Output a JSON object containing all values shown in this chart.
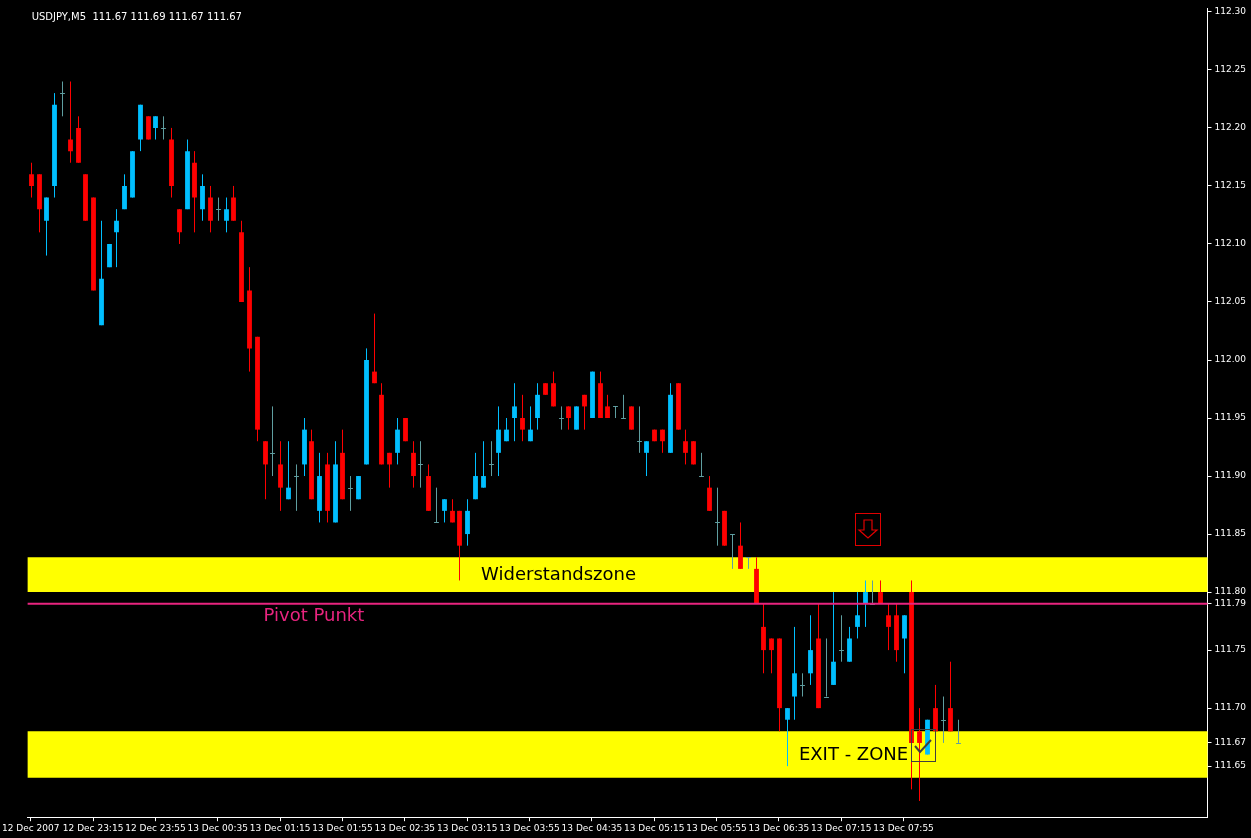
{
  "chart_data": {
    "type": "candlestick",
    "title": "USDJPY,M5  111.67 111.69 111.67 111.67",
    "x": [
      "2007-12-12T22:35",
      "2007-12-12T22:40",
      "2007-12-12T22:45",
      "2007-12-12T22:50",
      "2007-12-12T22:55",
      "2007-12-12T23:00",
      "2007-12-12T23:05",
      "2007-12-12T23:10",
      "2007-12-12T23:15",
      "2007-12-12T23:20",
      "2007-12-12T23:25",
      "2007-12-12T23:30",
      "2007-12-12T23:35",
      "2007-12-12T23:40",
      "2007-12-12T23:45",
      "2007-12-12T23:50",
      "2007-12-12T23:55",
      "2007-12-13T00:00",
      "2007-12-13T00:05",
      "2007-12-13T00:10",
      "2007-12-13T00:15",
      "2007-12-13T00:20",
      "2007-12-13T00:25",
      "2007-12-13T00:30",
      "2007-12-13T00:35",
      "2007-12-13T00:40",
      "2007-12-13T00:45",
      "2007-12-13T00:50",
      "2007-12-13T00:55",
      "2007-12-13T01:00",
      "2007-12-13T01:05",
      "2007-12-13T01:10",
      "2007-12-13T01:15",
      "2007-12-13T01:20",
      "2007-12-13T01:25",
      "2007-12-13T01:30",
      "2007-12-13T01:35",
      "2007-12-13T01:40",
      "2007-12-13T01:45",
      "2007-12-13T01:50",
      "2007-12-13T01:55",
      "2007-12-13T02:00",
      "2007-12-13T02:05",
      "2007-12-13T02:10",
      "2007-12-13T02:15",
      "2007-12-13T02:20",
      "2007-12-13T02:25",
      "2007-12-13T02:30",
      "2007-12-13T02:35",
      "2007-12-13T02:40",
      "2007-12-13T02:45",
      "2007-12-13T02:50",
      "2007-12-13T02:55",
      "2007-12-13T03:00",
      "2007-12-13T03:05",
      "2007-12-13T03:10",
      "2007-12-13T03:15",
      "2007-12-13T03:20",
      "2007-12-13T03:25",
      "2007-12-13T03:30",
      "2007-12-13T03:35",
      "2007-12-13T03:40",
      "2007-12-13T03:45",
      "2007-12-13T03:50",
      "2007-12-13T03:55",
      "2007-12-13T04:00",
      "2007-12-13T04:05",
      "2007-12-13T04:10",
      "2007-12-13T04:15",
      "2007-12-13T04:20",
      "2007-12-13T04:25",
      "2007-12-13T04:30",
      "2007-12-13T04:35",
      "2007-12-13T04:40",
      "2007-12-13T04:45",
      "2007-12-13T04:50",
      "2007-12-13T04:55",
      "2007-12-13T05:00",
      "2007-12-13T05:05",
      "2007-12-13T05:10",
      "2007-12-13T05:15",
      "2007-12-13T05:20",
      "2007-12-13T05:25",
      "2007-12-13T05:30",
      "2007-12-13T05:35",
      "2007-12-13T05:40",
      "2007-12-13T05:45",
      "2007-12-13T05:50",
      "2007-12-13T05:55",
      "2007-12-13T06:00",
      "2007-12-13T06:05",
      "2007-12-13T06:10",
      "2007-12-13T06:15",
      "2007-12-13T06:20",
      "2007-12-13T06:25",
      "2007-12-13T06:30",
      "2007-12-13T06:35",
      "2007-12-13T06:40",
      "2007-12-13T06:45",
      "2007-12-13T06:50",
      "2007-12-13T06:55",
      "2007-12-13T07:00",
      "2007-12-13T07:05",
      "2007-12-13T07:10",
      "2007-12-13T07:15",
      "2007-12-13T07:20",
      "2007-12-13T07:25",
      "2007-12-13T07:30",
      "2007-12-13T07:35",
      "2007-12-13T07:40",
      "2007-12-13T07:45",
      "2007-12-13T07:50",
      "2007-12-13T07:55",
      "2007-12-13T08:00",
      "2007-12-13T08:05",
      "2007-12-13T08:10",
      "2007-12-13T08:15",
      "2007-12-13T08:20",
      "2007-12-13T08:25",
      "2007-12-13T08:30"
    ],
    "ohlc": [
      [
        112.16,
        112.17,
        112.14,
        112.15
      ],
      [
        112.16,
        112.16,
        112.11,
        112.13
      ],
      [
        112.12,
        112.14,
        112.09,
        112.14
      ],
      [
        112.15,
        112.23,
        112.14,
        112.22
      ],
      [
        112.23,
        112.24,
        112.21,
        112.23
      ],
      [
        112.19,
        112.24,
        112.17,
        112.18
      ],
      [
        112.2,
        112.21,
        112.17,
        112.17
      ],
      [
        112.16,
        112.16,
        112.12,
        112.12
      ],
      [
        112.14,
        112.14,
        112.06,
        112.06
      ],
      [
        112.03,
        112.12,
        112.03,
        112.07
      ],
      [
        112.08,
        112.1,
        112.08,
        112.1
      ],
      [
        112.11,
        112.13,
        112.08,
        112.12
      ],
      [
        112.13,
        112.16,
        112.13,
        112.15
      ],
      [
        112.14,
        112.18,
        112.14,
        112.18
      ],
      [
        112.19,
        112.22,
        112.18,
        112.22
      ],
      [
        112.21,
        112.21,
        112.19,
        112.19
      ],
      [
        112.2,
        112.21,
        112.19,
        112.21
      ],
      [
        112.2,
        112.21,
        112.19,
        112.2
      ],
      [
        112.19,
        112.2,
        112.14,
        112.15
      ],
      [
        112.13,
        112.13,
        112.1,
        112.11
      ],
      [
        112.13,
        112.19,
        112.13,
        112.18
      ],
      [
        112.17,
        112.18,
        112.11,
        112.14
      ],
      [
        112.13,
        112.16,
        112.12,
        112.15
      ],
      [
        112.14,
        112.15,
        112.11,
        112.12
      ],
      [
        112.13,
        112.14,
        112.12,
        112.13
      ],
      [
        112.12,
        112.14,
        112.11,
        112.13
      ],
      [
        112.14,
        112.15,
        112.12,
        112.12
      ],
      [
        112.11,
        112.12,
        112.05,
        112.05
      ],
      [
        112.06,
        112.08,
        111.99,
        112.01
      ],
      [
        112.02,
        112.02,
        111.93,
        111.94
      ],
      [
        111.93,
        111.93,
        111.88,
        111.91
      ],
      [
        111.92,
        111.96,
        111.9,
        111.92
      ],
      [
        111.91,
        111.93,
        111.87,
        111.89
      ],
      [
        111.88,
        111.93,
        111.88,
        111.89
      ],
      [
        111.9,
        111.91,
        111.87,
        111.9
      ],
      [
        111.91,
        111.95,
        111.9,
        111.94
      ],
      [
        111.93,
        111.94,
        111.88,
        111.88
      ],
      [
        111.87,
        111.92,
        111.86,
        111.9
      ],
      [
        111.91,
        111.92,
        111.86,
        111.87
      ],
      [
        111.86,
        111.93,
        111.86,
        111.91
      ],
      [
        111.92,
        111.94,
        111.88,
        111.88
      ],
      [
        111.89,
        111.9,
        111.87,
        111.89
      ],
      [
        111.88,
        111.9,
        111.88,
        111.9
      ],
      [
        111.91,
        112.01,
        111.91,
        112.0
      ],
      [
        111.99,
        112.04,
        111.98,
        111.98
      ],
      [
        111.97,
        111.98,
        111.91,
        111.91
      ],
      [
        111.92,
        111.92,
        111.89,
        111.91
      ],
      [
        111.92,
        111.95,
        111.91,
        111.94
      ],
      [
        111.95,
        111.95,
        111.93,
        111.93
      ],
      [
        111.92,
        111.93,
        111.89,
        111.9
      ],
      [
        111.91,
        111.93,
        111.89,
        111.91
      ],
      [
        111.9,
        111.91,
        111.87,
        111.87
      ],
      [
        111.86,
        111.89,
        111.86,
        111.86
      ],
      [
        111.87,
        111.88,
        111.86,
        111.88
      ],
      [
        111.87,
        111.88,
        111.86,
        111.86
      ],
      [
        111.87,
        111.87,
        111.81,
        111.84
      ],
      [
        111.85,
        111.88,
        111.84,
        111.87
      ],
      [
        111.88,
        111.92,
        111.88,
        111.9
      ],
      [
        111.89,
        111.93,
        111.89,
        111.9
      ],
      [
        111.91,
        111.93,
        111.9,
        111.91
      ],
      [
        111.92,
        111.96,
        111.9,
        111.94
      ],
      [
        111.93,
        111.95,
        111.93,
        111.94
      ],
      [
        111.95,
        111.98,
        111.93,
        111.96
      ],
      [
        111.95,
        111.97,
        111.93,
        111.94
      ],
      [
        111.93,
        111.96,
        111.93,
        111.94
      ],
      [
        111.95,
        111.98,
        111.94,
        111.97
      ],
      [
        111.98,
        111.98,
        111.97,
        111.97
      ],
      [
        111.98,
        111.99,
        111.96,
        111.96
      ],
      [
        111.95,
        111.96,
        111.94,
        111.95
      ],
      [
        111.96,
        111.96,
        111.94,
        111.95
      ],
      [
        111.94,
        111.96,
        111.94,
        111.96
      ],
      [
        111.97,
        111.97,
        111.94,
        111.96
      ],
      [
        111.95,
        111.99,
        111.95,
        111.99
      ],
      [
        111.98,
        111.99,
        111.95,
        111.95
      ],
      [
        111.96,
        111.97,
        111.95,
        111.95
      ],
      [
        111.96,
        111.96,
        111.95,
        111.96
      ],
      [
        111.95,
        111.97,
        111.95,
        111.95
      ],
      [
        111.96,
        111.96,
        111.94,
        111.94
      ],
      [
        111.93,
        111.96,
        111.92,
        111.93
      ],
      [
        111.92,
        111.93,
        111.9,
        111.93
      ],
      [
        111.94,
        111.94,
        111.93,
        111.93
      ],
      [
        111.94,
        111.94,
        111.92,
        111.93
      ],
      [
        111.92,
        111.98,
        111.92,
        111.97
      ],
      [
        111.98,
        111.98,
        111.94,
        111.94
      ],
      [
        111.93,
        111.94,
        111.91,
        111.92
      ],
      [
        111.93,
        111.93,
        111.91,
        111.91
      ],
      [
        111.9,
        111.92,
        111.9,
        111.9
      ],
      [
        111.89,
        111.9,
        111.87,
        111.87
      ],
      [
        111.86,
        111.89,
        111.84,
        111.86
      ],
      [
        111.87,
        111.87,
        111.84,
        111.84
      ],
      [
        111.85,
        111.85,
        111.82,
        111.85
      ],
      [
        111.84,
        111.86,
        111.82,
        111.82
      ],
      [
        111.83,
        111.83,
        111.82,
        111.83
      ],
      [
        111.82,
        111.83,
        111.79,
        111.79
      ],
      [
        111.77,
        111.79,
        111.73,
        111.75
      ],
      [
        111.76,
        111.76,
        111.73,
        111.75
      ],
      [
        111.76,
        111.76,
        111.68,
        111.7
      ],
      [
        111.69,
        111.7,
        111.65,
        111.7
      ],
      [
        111.71,
        111.77,
        111.69,
        111.73
      ],
      [
        111.72,
        111.73,
        111.71,
        111.72
      ],
      [
        111.73,
        111.78,
        111.72,
        111.75
      ],
      [
        111.76,
        111.79,
        111.7,
        111.7
      ],
      [
        111.71,
        111.76,
        111.71,
        111.71
      ],
      [
        111.72,
        111.8,
        111.72,
        111.74
      ],
      [
        111.75,
        111.78,
        111.74,
        111.75
      ],
      [
        111.74,
        111.77,
        111.74,
        111.76
      ],
      [
        111.77,
        111.8,
        111.76,
        111.78
      ],
      [
        111.79,
        111.81,
        111.77,
        111.8
      ],
      [
        111.79,
        111.81,
        111.79,
        111.79
      ],
      [
        111.8,
        111.81,
        111.79,
        111.79
      ],
      [
        111.78,
        111.79,
        111.75,
        111.77
      ],
      [
        111.78,
        111.79,
        111.74,
        111.75
      ],
      [
        111.76,
        111.78,
        111.73,
        111.78
      ],
      [
        111.8,
        111.81,
        111.63,
        111.67
      ],
      [
        111.68,
        111.7,
        111.62,
        111.67
      ],
      [
        111.66,
        111.69,
        111.66,
        111.69
      ],
      [
        111.7,
        111.72,
        111.68,
        111.68
      ],
      [
        111.69,
        111.71,
        111.67,
        111.69
      ],
      [
        111.7,
        111.74,
        111.68,
        111.68
      ],
      [
        111.67,
        111.69,
        111.67,
        111.67
      ]
    ],
    "colors": [
      "#ff0000",
      "#ff0000",
      "#00bfff",
      "#00bfff",
      "#5f9ea0",
      "#ff0000",
      "#ff0000",
      "#ff0000",
      "#ff0000",
      "#00bfff",
      "#00bfff",
      "#00bfff",
      "#00bfff",
      "#00bfff",
      "#00bfff",
      "#ff0000",
      "#00bfff",
      "#5f9ea0",
      "#ff0000",
      "#ff0000",
      "#00bfff",
      "#ff0000",
      "#00bfff",
      "#ff0000",
      "#5f9ea0",
      "#00bfff",
      "#ff0000",
      "#ff0000",
      "#ff0000",
      "#ff0000",
      "#ff0000",
      "#5f9ea0",
      "#ff0000",
      "#00bfff",
      "#5f9ea0",
      "#00bfff",
      "#ff0000",
      "#00bfff",
      "#ff0000",
      "#00bfff",
      "#ff0000",
      "#5f9ea0",
      "#00bfff",
      "#00bfff",
      "#ff0000",
      "#ff0000",
      "#ff0000",
      "#00bfff",
      "#ff0000",
      "#ff0000",
      "#5f9ea0",
      "#ff0000",
      "#5f9ea0",
      "#00bfff",
      "#ff0000",
      "#ff0000",
      "#00bfff",
      "#00bfff",
      "#00bfff",
      "#5f9ea0",
      "#00bfff",
      "#00bfff",
      "#00bfff",
      "#ff0000",
      "#00bfff",
      "#00bfff",
      "#ff0000",
      "#ff0000",
      "#5f9ea0",
      "#ff0000",
      "#00bfff",
      "#ff0000",
      "#00bfff",
      "#ff0000",
      "#ff0000",
      "#5f9ea0",
      "#5f9ea0",
      "#ff0000",
      "#5f9ea0",
      "#00bfff",
      "#ff0000",
      "#ff0000",
      "#00bfff",
      "#ff0000",
      "#ff0000",
      "#ff0000",
      "#5f9ea0",
      "#ff0000",
      "#5f9ea0",
      "#ff0000",
      "#5f9ea0",
      "#ff0000",
      "#5f9ea0",
      "#ff0000",
      "#ff0000",
      "#ff0000",
      "#ff0000",
      "#00bfff",
      "#00bfff",
      "#5f9ea0",
      "#00bfff",
      "#ff0000",
      "#5f9ea0",
      "#00bfff",
      "#5f9ea0",
      "#00bfff",
      "#00bfff",
      "#00bfff",
      "#5f9ea0",
      "#ff0000",
      "#ff0000",
      "#ff0000",
      "#00bfff",
      "#ff0000",
      "#ff0000",
      "#00bfff",
      "#ff0000",
      "#5f9ea0",
      "#ff0000",
      "#5f9ea0"
    ],
    "xlim": [
      "2007-12-12T22:33",
      "2007-12-13T11:10"
    ],
    "xticks": [
      {
        "value": "2007-12-12T22:35",
        "label": "12 Dec 2007"
      },
      {
        "value": "2007-12-12T23:15",
        "label": "12 Dec 23:15"
      },
      {
        "value": "2007-12-12T23:55",
        "label": "12 Dec 23:55"
      },
      {
        "value": "2007-12-13T00:35",
        "label": "13 Dec 00:35"
      },
      {
        "value": "2007-12-13T01:15",
        "label": "13 Dec 01:15"
      },
      {
        "value": "2007-12-13T01:55",
        "label": "13 Dec 01:55"
      },
      {
        "value": "2007-12-13T02:35",
        "label": "13 Dec 02:35"
      },
      {
        "value": "2007-12-13T03:15",
        "label": "13 Dec 03:15"
      },
      {
        "value": "2007-12-13T03:55",
        "label": "13 Dec 03:55"
      },
      {
        "value": "2007-12-13T04:35",
        "label": "13 Dec 04:35"
      },
      {
        "value": "2007-12-13T05:15",
        "label": "13 Dec 05:15"
      },
      {
        "value": "2007-12-13T05:55",
        "label": "13 Dec 05:55"
      },
      {
        "value": "2007-12-13T06:35",
        "label": "13 Dec 06:35"
      },
      {
        "value": "2007-12-13T07:15",
        "label": "13 Dec 07:15"
      },
      {
        "value": "2007-12-13T07:55",
        "label": "13 Dec 07:55"
      }
    ],
    "ylim": [
      111.606,
      112.303
    ],
    "yticks": [
      {
        "value": 111.65,
        "label": "111.65"
      },
      {
        "value": 111.67,
        "label": "111.67"
      },
      {
        "value": 111.7,
        "label": "111.70"
      },
      {
        "value": 111.75,
        "label": "111.75"
      },
      {
        "value": 111.79,
        "label": "111.79"
      },
      {
        "value": 111.8,
        "label": "111.80"
      },
      {
        "value": 111.85,
        "label": "111.85"
      },
      {
        "value": 111.9,
        "label": "111.90"
      },
      {
        "value": 111.95,
        "label": "111.95"
      },
      {
        "value": 112.0,
        "label": "112.00"
      },
      {
        "value": 112.05,
        "label": "112.05"
      },
      {
        "value": 112.1,
        "label": "112.10"
      },
      {
        "value": 112.15,
        "label": "112.15"
      },
      {
        "value": 112.2,
        "label": "112.20"
      },
      {
        "value": 112.25,
        "label": "112.25"
      },
      {
        "value": 112.3,
        "label": "112.30"
      }
    ],
    "bands": [
      {
        "axis": "y",
        "from": 111.8,
        "to": 111.83,
        "label": "Widerstandszone",
        "color": "#ffff00"
      },
      {
        "axis": "y",
        "from": 111.64,
        "to": 111.68,
        "label": "EXIT - ZONE",
        "color": "#ffff00"
      }
    ],
    "ref_lines": [
      {
        "axis": "y",
        "value": 111.79,
        "label": "Pivot Punkt",
        "color": "#e8247f"
      }
    ]
  }
}
